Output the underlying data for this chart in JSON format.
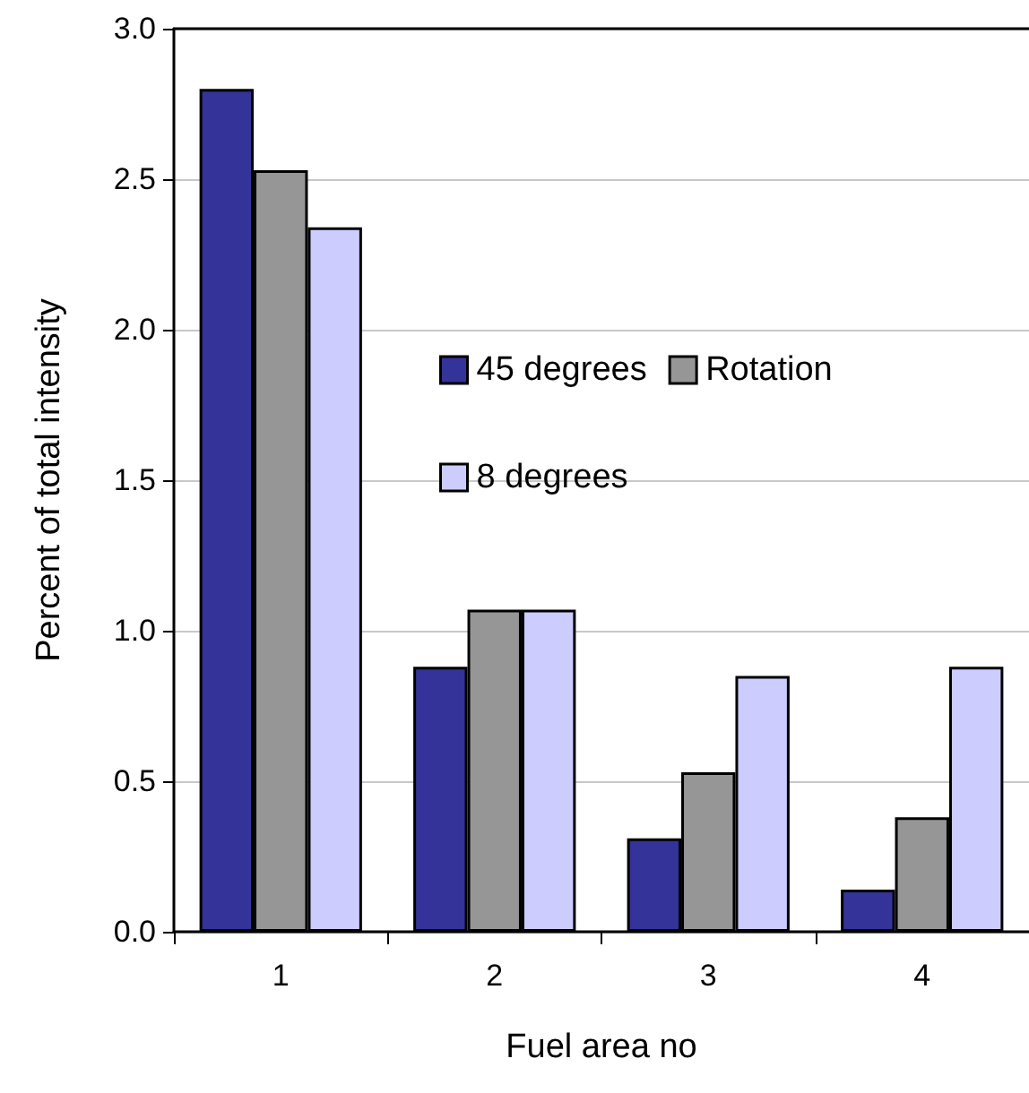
{
  "chart_data": {
    "type": "bar",
    "xlabel": "Fuel area no",
    "ylabel": "Percent of total intensity",
    "categories": [
      "1",
      "2",
      "3",
      "4"
    ],
    "series": [
      {
        "name": "45 degrees",
        "color": "#333399",
        "values": [
          2.8,
          0.88,
          0.31,
          0.14
        ]
      },
      {
        "name": "Rotation",
        "color": "#969696",
        "values": [
          2.53,
          1.07,
          0.53,
          0.38
        ]
      },
      {
        "name": "8 degrees",
        "color": "#ccccff",
        "values": [
          2.34,
          1.07,
          0.85,
          0.88
        ]
      }
    ],
    "ylim": [
      0,
      3.0
    ],
    "yticks": [
      {
        "value": 0,
        "label": "0.0"
      },
      {
        "value": 0.5,
        "label": "0.5"
      },
      {
        "value": 1,
        "label": "1.0"
      },
      {
        "value": 1.5,
        "label": "1.5"
      },
      {
        "value": 2,
        "label": "2.0"
      },
      {
        "value": 2.5,
        "label": "2.5"
      },
      {
        "value": 3,
        "label": "3.0"
      }
    ],
    "grid": "y",
    "legend": "right"
  }
}
